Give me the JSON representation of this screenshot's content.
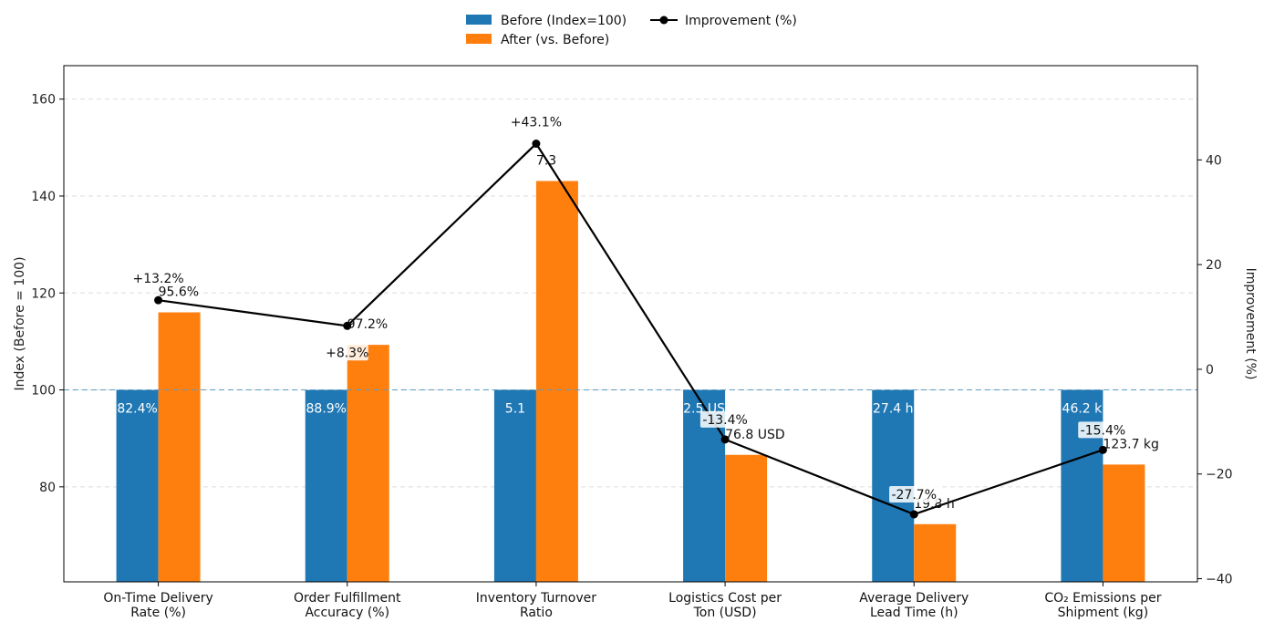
{
  "chart_data": {
    "type": "bar",
    "title": "",
    "ylabel": "Index (Before = 100)",
    "y2label": "Improvement (%)",
    "ylim": [
      60.4,
      166.9
    ],
    "y2lim": [
      -40.6,
      58.0
    ],
    "yticks": [
      "80",
      "100",
      "120",
      "140",
      "160"
    ],
    "y2ticks": [
      "−40",
      "−20",
      "0",
      "20",
      "40"
    ],
    "categories": [
      [
        "On-Time Delivery",
        "Rate (%)"
      ],
      [
        "Order Fulfillment",
        "Accuracy (%)"
      ],
      [
        "Inventory Turnover",
        "Ratio"
      ],
      [
        "Logistics Cost per",
        "Ton (USD)"
      ],
      [
        "Average Delivery",
        "Lead Time (h)"
      ],
      [
        "CO₂ Emissions per",
        "Shipment (kg)"
      ]
    ],
    "legend": {
      "before": "Before (Index=100)",
      "after": "After (vs. Before)",
      "improvement": "Improvement (%)"
    },
    "series": [
      {
        "name": "Before (Index=100)",
        "color": "#1f77b4",
        "values": [
          100,
          100,
          100,
          100,
          100,
          100
        ],
        "labels": [
          "82.4%",
          "88.9%",
          "5.1",
          "2.5 US",
          "27.4 h",
          "46.2 k"
        ]
      },
      {
        "name": "After (vs. Before)",
        "color": "#ff7f0e",
        "values": [
          116.0,
          109.3,
          143.1,
          86.6,
          72.3,
          84.6
        ],
        "labels": [
          "95.6%",
          "97.2%",
          "7.3",
          "76.8 USD",
          "19.8 h",
          "123.7 kg"
        ]
      },
      {
        "name": "Improvement (%)",
        "color": "#000000",
        "axis": "right",
        "values": [
          13.2,
          8.3,
          43.1,
          -13.4,
          -27.7,
          -15.4
        ],
        "labels": [
          "+13.2%",
          "+8.3%",
          "+43.1%",
          "-13.4%",
          "-27.7%",
          "-15.4%"
        ]
      }
    ],
    "reference_line": 100,
    "grid": true,
    "legend_position": "top-center"
  }
}
